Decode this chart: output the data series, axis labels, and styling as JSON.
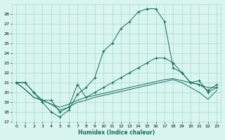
{
  "xlabel": "Humidex (Indice chaleur)",
  "x": [
    0,
    1,
    2,
    3,
    4,
    5,
    6,
    7,
    8,
    9,
    10,
    11,
    12,
    13,
    14,
    15,
    16,
    17,
    18,
    19,
    20,
    21,
    22,
    23
  ],
  "line1": [
    21.0,
    21.0,
    20.0,
    19.0,
    18.0,
    17.5,
    18.2,
    19.8,
    20.5,
    21.5,
    24.2,
    25.0,
    26.5,
    27.2,
    28.2,
    28.5,
    28.5,
    27.2,
    22.5,
    22.0,
    21.0,
    21.2,
    20.0,
    20.5
  ],
  "line2": [
    21.0,
    21.0,
    20.0,
    19.2,
    19.2,
    18.0,
    18.5,
    20.8,
    19.5,
    20.0,
    20.5,
    21.0,
    21.5,
    22.0,
    22.5,
    23.0,
    23.5,
    23.5,
    23.0,
    22.0,
    21.0,
    20.8,
    20.2,
    20.8
  ],
  "line3": [
    21.0,
    20.3,
    19.5,
    19.2,
    18.8,
    18.5,
    18.8,
    19.2,
    19.5,
    19.7,
    19.9,
    20.1,
    20.3,
    20.5,
    20.7,
    20.9,
    21.1,
    21.3,
    21.4,
    21.2,
    21.0,
    20.8,
    20.5,
    20.5
  ],
  "line4": [
    21.0,
    20.3,
    19.5,
    19.2,
    18.8,
    18.2,
    18.5,
    19.0,
    19.2,
    19.5,
    19.7,
    19.9,
    20.1,
    20.3,
    20.5,
    20.7,
    20.9,
    21.1,
    21.3,
    21.0,
    20.5,
    20.0,
    19.3,
    20.2
  ],
  "color": "#1a6b5a",
  "bg_color": "#d8f5f0",
  "grid_color": "#aed8d0",
  "ylim": [
    17,
    29
  ],
  "yticks": [
    17,
    18,
    19,
    20,
    21,
    22,
    23,
    24,
    25,
    26,
    27,
    28
  ],
  "xlim": [
    -0.5,
    23.5
  ]
}
